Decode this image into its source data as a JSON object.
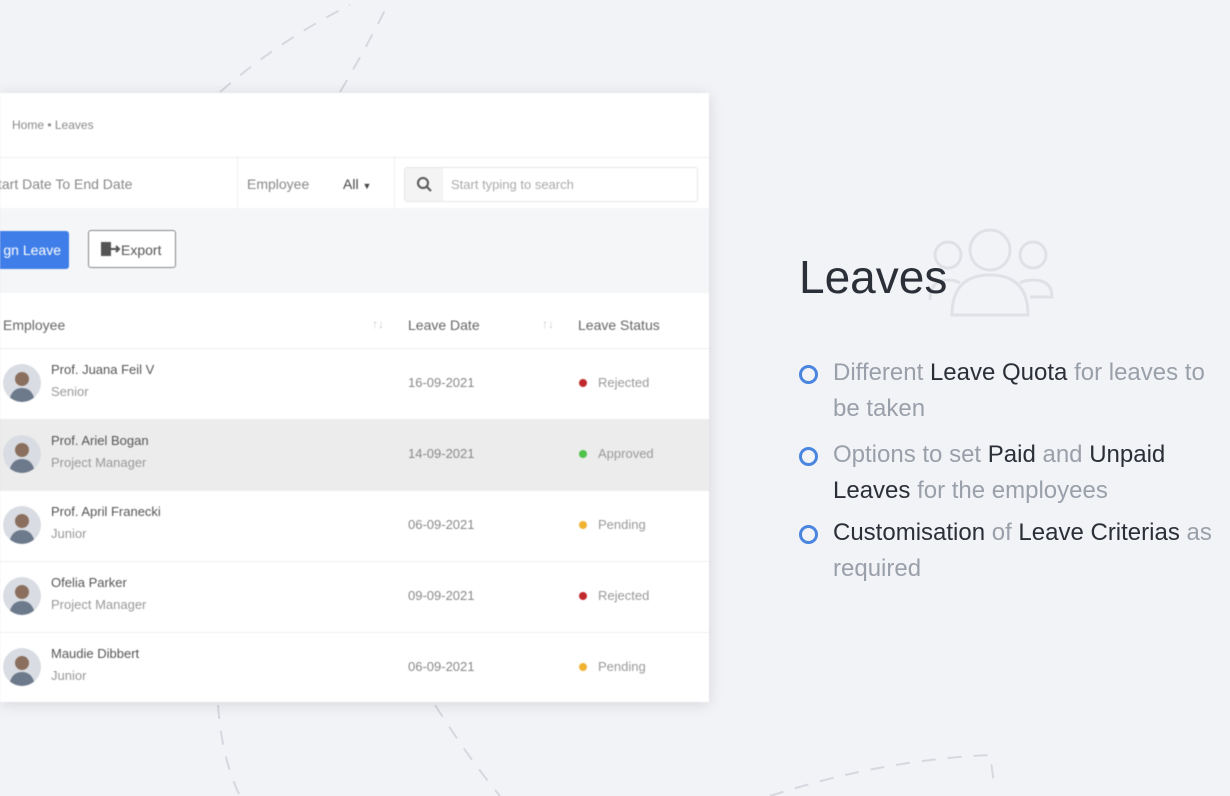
{
  "breadcrumb": "Home • Leaves",
  "filters": {
    "date_range": "tart Date To End Date",
    "employee_label": "Employee",
    "employee_value": "All",
    "search_placeholder": "Start typing to search"
  },
  "buttons": {
    "assign": "gn Leave",
    "export": "Export"
  },
  "table": {
    "headers": [
      "Employee",
      "Leave Date",
      "Leave Status"
    ],
    "rows": [
      {
        "name": "Prof. Juana Feil V",
        "role": "Senior",
        "date": "16-09-2021",
        "status": "Rejected",
        "status_color": "#c0282d",
        "highlight": false
      },
      {
        "name": "Prof. Ariel Bogan",
        "role": "Project Manager",
        "date": "14-09-2021",
        "status": "Approved",
        "status_color": "#4fc24a",
        "highlight": true
      },
      {
        "name": "Prof. April Franecki",
        "role": "Junior",
        "date": "06-09-2021",
        "status": "Pending",
        "status_color": "#f0b232",
        "highlight": false
      },
      {
        "name": "Ofelia Parker",
        "role": "Project Manager",
        "date": "09-09-2021",
        "status": "Rejected",
        "status_color": "#c0282d",
        "highlight": false
      },
      {
        "name": "Maudie Dibbert",
        "role": "Junior",
        "date": "06-09-2021",
        "status": "Pending",
        "status_color": "#f0b232",
        "highlight": false
      }
    ]
  },
  "title": "Leaves",
  "features": [
    {
      "segments": [
        {
          "text": "Different",
          "strong": false
        },
        {
          "text": "Leave Quota",
          "strong": true
        },
        {
          "text": "for leaves to be taken",
          "strong": false
        }
      ]
    },
    {
      "segments": [
        {
          "text": "Options to set",
          "strong": false
        },
        {
          "text": "Paid",
          "strong": true
        },
        {
          "text": "and",
          "strong": false
        },
        {
          "text": "Unpaid Leaves",
          "strong": true
        },
        {
          "text": "for the employees",
          "strong": false
        }
      ]
    },
    {
      "segments": [
        {
          "text": "Customisation",
          "strong": true
        },
        {
          "text": "of",
          "strong": false
        },
        {
          "text": "Leave Criterias",
          "strong": true
        },
        {
          "text": "as required",
          "strong": false
        }
      ]
    }
  ]
}
